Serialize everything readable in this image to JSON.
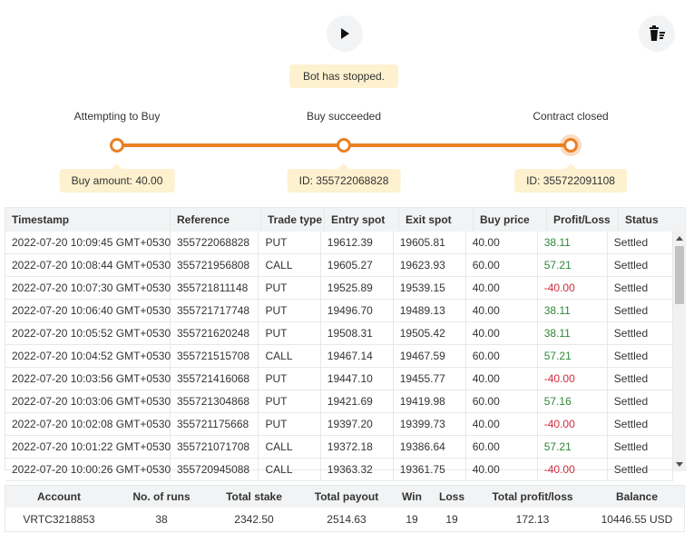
{
  "controls": {
    "play_icon": "play-icon",
    "clear_icon": "clear-stats-icon"
  },
  "status": "Bot has stopped.",
  "steps": [
    {
      "label": "Attempting to Buy",
      "info": "Buy amount: 40.00"
    },
    {
      "label": "Buy succeeded",
      "info": "ID: 355722068828"
    },
    {
      "label": "Contract closed",
      "info": "ID: 355722091108"
    }
  ],
  "transactions": {
    "headers": [
      "Timestamp",
      "Reference",
      "Trade type",
      "Entry spot",
      "Exit spot",
      "Buy price",
      "Profit/Loss",
      "Status"
    ],
    "rows": [
      {
        "timestamp": "2022-07-20 10:09:45 GMT+0530",
        "reference": "355722068828",
        "trade_type": "PUT",
        "entry_spot": "19612.39",
        "exit_spot": "19605.81",
        "buy_price": "40.00",
        "profit_loss": "38.11",
        "status": "Settled"
      },
      {
        "timestamp": "2022-07-20 10:08:44 GMT+0530",
        "reference": "355721956808",
        "trade_type": "CALL",
        "entry_spot": "19605.27",
        "exit_spot": "19623.93",
        "buy_price": "60.00",
        "profit_loss": "57.21",
        "status": "Settled"
      },
      {
        "timestamp": "2022-07-20 10:07:30 GMT+0530",
        "reference": "355721811148",
        "trade_type": "PUT",
        "entry_spot": "19525.89",
        "exit_spot": "19539.15",
        "buy_price": "40.00",
        "profit_loss": "-40.00",
        "status": "Settled"
      },
      {
        "timestamp": "2022-07-20 10:06:40 GMT+0530",
        "reference": "355721717748",
        "trade_type": "PUT",
        "entry_spot": "19496.70",
        "exit_spot": "19489.13",
        "buy_price": "40.00",
        "profit_loss": "38.11",
        "status": "Settled"
      },
      {
        "timestamp": "2022-07-20 10:05:52 GMT+0530",
        "reference": "355721620248",
        "trade_type": "PUT",
        "entry_spot": "19508.31",
        "exit_spot": "19505.42",
        "buy_price": "40.00",
        "profit_loss": "38.11",
        "status": "Settled"
      },
      {
        "timestamp": "2022-07-20 10:04:52 GMT+0530",
        "reference": "355721515708",
        "trade_type": "CALL",
        "entry_spot": "19467.14",
        "exit_spot": "19467.59",
        "buy_price": "60.00",
        "profit_loss": "57.21",
        "status": "Settled"
      },
      {
        "timestamp": "2022-07-20 10:03:56 GMT+0530",
        "reference": "355721416068",
        "trade_type": "PUT",
        "entry_spot": "19447.10",
        "exit_spot": "19455.77",
        "buy_price": "40.00",
        "profit_loss": "-40.00",
        "status": "Settled"
      },
      {
        "timestamp": "2022-07-20 10:03:06 GMT+0530",
        "reference": "355721304868",
        "trade_type": "PUT",
        "entry_spot": "19421.69",
        "exit_spot": "19419.98",
        "buy_price": "60.00",
        "profit_loss": "57.16",
        "status": "Settled"
      },
      {
        "timestamp": "2022-07-20 10:02:08 GMT+0530",
        "reference": "355721175668",
        "trade_type": "PUT",
        "entry_spot": "19397.20",
        "exit_spot": "19399.73",
        "buy_price": "40.00",
        "profit_loss": "-40.00",
        "status": "Settled"
      },
      {
        "timestamp": "2022-07-20 10:01:22 GMT+0530",
        "reference": "355721071708",
        "trade_type": "CALL",
        "entry_spot": "19372.18",
        "exit_spot": "19386.64",
        "buy_price": "60.00",
        "profit_loss": "57.21",
        "status": "Settled"
      },
      {
        "timestamp": "2022-07-20 10:00:26 GMT+0530",
        "reference": "355720945088",
        "trade_type": "CALL",
        "entry_spot": "19363.32",
        "exit_spot": "19361.75",
        "buy_price": "40.00",
        "profit_loss": "-40.00",
        "status": "Settled"
      }
    ]
  },
  "summary": {
    "headers": [
      "Account",
      "No. of runs",
      "Total stake",
      "Total payout",
      "Win",
      "Loss",
      "Total profit/loss",
      "Balance"
    ],
    "values": {
      "account": "VRTC3218853",
      "runs": "38",
      "total_stake": "2342.50",
      "total_payout": "2514.63",
      "win": "19",
      "loss": "19",
      "total_profit_loss": "172.13",
      "balance": "10446.55 USD"
    }
  },
  "colors": {
    "accent": "#e98024",
    "profit": "#2e8836",
    "loss": "#cc2e3d",
    "pill": "#fdf1cf"
  }
}
